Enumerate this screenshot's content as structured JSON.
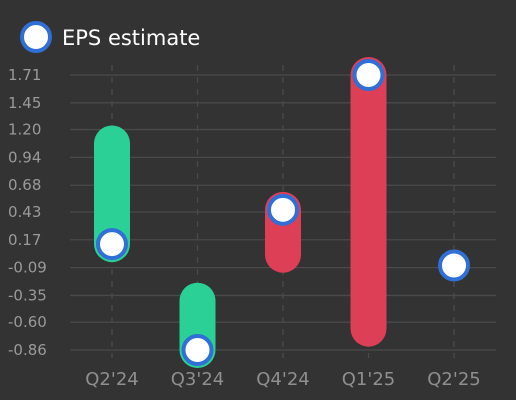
{
  "chart_data": {
    "type": "bar",
    "subtype": "floating-range-with-estimate-marker",
    "categories": [
      "Q2'24",
      "Q3'24",
      "Q4'24",
      "Q1'25",
      "Q2'25"
    ],
    "series": [
      {
        "name": "EPS estimate",
        "values": [
          0.13,
          -0.86,
          0.45,
          1.71,
          -0.07
        ]
      }
    ],
    "ranges": [
      {
        "category": "Q2'24",
        "low": 0.13,
        "high": 1.07
      },
      {
        "category": "Q3'24",
        "low": -0.86,
        "high": -0.4
      },
      {
        "category": "Q4'24",
        "low": 0.03,
        "high": 0.45
      },
      {
        "category": "Q1'25",
        "low": -0.66,
        "high": 1.71
      },
      {
        "category": "Q2'25",
        "low": null,
        "high": null
      }
    ],
    "y_ticks": [
      "1.71",
      "1.45",
      "1.20",
      "0.94",
      "0.68",
      "0.43",
      "0.17",
      "-0.09",
      "-0.35",
      "-0.60",
      "-0.86"
    ],
    "ylim": [
      -0.86,
      1.71
    ],
    "colors": {
      "beat": "#2bd096",
      "miss": "#dc3f56",
      "marker_fill": "#ffffff",
      "marker_stroke": "#2f6fd6",
      "grid": "#4a4a4a",
      "background": "#333333"
    },
    "grid": true,
    "legend": "top-left"
  }
}
